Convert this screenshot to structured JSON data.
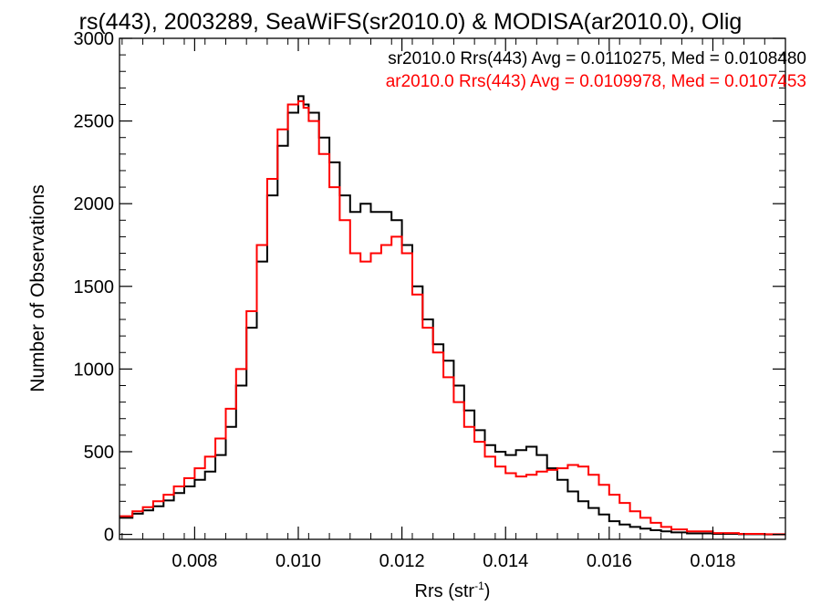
{
  "chart_data": {
    "type": "line",
    "title": "rs(443), 2003289, SeaWiFS(sr2010.0) & MODISA(ar2010.0), Olig",
    "xlabel": "Rrs (str",
    "xlabel_sup": "-1",
    "xlabel_close": ")",
    "ylabel": "Number of Observations",
    "xlim": [
      0.00655,
      0.0194
    ],
    "ylim": [
      -30,
      3000
    ],
    "xticks": [
      0.008,
      0.01,
      0.012,
      0.014,
      0.016,
      0.018
    ],
    "xtick_labels": [
      "0.008",
      "0.010",
      "0.012",
      "0.014",
      "0.016",
      "0.018"
    ],
    "yticks": [
      0,
      500,
      1000,
      1500,
      2000,
      2500,
      3000
    ],
    "ytick_labels": [
      "0",
      "500",
      "1000",
      "1500",
      "2000",
      "2500",
      "3000"
    ],
    "grid": false,
    "legend_position": "top-right",
    "series": [
      {
        "name": "sr2010.0 Rrs(443) Avg = 0.0110275, Med = 0.0108480",
        "color": "#000000",
        "x": [
          0.00655,
          0.0068,
          0.007,
          0.0072,
          0.0074,
          0.0076,
          0.0078,
          0.008,
          0.0082,
          0.0084,
          0.0086,
          0.0088,
          0.009,
          0.0092,
          0.0094,
          0.0096,
          0.0098,
          0.01,
          0.0101,
          0.0102,
          0.0104,
          0.0106,
          0.0108,
          0.011,
          0.0112,
          0.0114,
          0.0116,
          0.0118,
          0.012,
          0.0122,
          0.0124,
          0.0126,
          0.0128,
          0.013,
          0.0132,
          0.0134,
          0.0136,
          0.0138,
          0.014,
          0.0142,
          0.0144,
          0.0146,
          0.0148,
          0.015,
          0.0152,
          0.0154,
          0.0156,
          0.0158,
          0.016,
          0.0162,
          0.0164,
          0.0166,
          0.0168,
          0.017,
          0.0172,
          0.0175,
          0.018,
          0.0185,
          0.019
        ],
        "values": [
          100,
          125,
          145,
          170,
          205,
          250,
          290,
          330,
          380,
          480,
          650,
          900,
          1250,
          1650,
          2050,
          2350,
          2550,
          2650,
          2600,
          2550,
          2400,
          2250,
          2050,
          1950,
          2000,
          1950,
          1950,
          1900,
          1750,
          1500,
          1300,
          1150,
          1050,
          900,
          750,
          630,
          540,
          500,
          480,
          510,
          530,
          480,
          400,
          330,
          260,
          200,
          160,
          120,
          80,
          60,
          45,
          35,
          25,
          18,
          12,
          6,
          3,
          1,
          0
        ]
      },
      {
        "name": "ar2010.0 Rrs(443) Avg = 0.0109978, Med = 0.0107453",
        "color": "#ff0000",
        "x": [
          0.00655,
          0.0068,
          0.007,
          0.0072,
          0.0074,
          0.0076,
          0.0078,
          0.008,
          0.0082,
          0.0084,
          0.0086,
          0.0088,
          0.009,
          0.0092,
          0.0094,
          0.0096,
          0.0098,
          0.01,
          0.0101,
          0.0102,
          0.0104,
          0.0106,
          0.0108,
          0.011,
          0.0112,
          0.0114,
          0.0116,
          0.0118,
          0.012,
          0.0122,
          0.0124,
          0.0126,
          0.0128,
          0.013,
          0.0132,
          0.0134,
          0.0136,
          0.0138,
          0.014,
          0.0142,
          0.0144,
          0.0146,
          0.0148,
          0.015,
          0.0152,
          0.0154,
          0.0156,
          0.0158,
          0.016,
          0.0162,
          0.0164,
          0.0166,
          0.0168,
          0.017,
          0.0172,
          0.0175,
          0.018,
          0.0185,
          0.019
        ],
        "values": [
          110,
          140,
          165,
          200,
          240,
          290,
          340,
          400,
          470,
          580,
          760,
          1000,
          1350,
          1750,
          2150,
          2450,
          2600,
          2620,
          2580,
          2500,
          2300,
          2100,
          1900,
          1700,
          1650,
          1700,
          1750,
          1800,
          1700,
          1450,
          1250,
          1100,
          950,
          800,
          650,
          560,
          470,
          410,
          370,
          350,
          360,
          380,
          390,
          400,
          420,
          410,
          360,
          300,
          240,
          190,
          140,
          100,
          70,
          45,
          30,
          18,
          8,
          3,
          1
        ]
      }
    ]
  }
}
